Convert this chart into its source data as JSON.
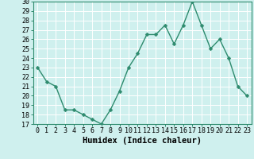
{
  "x": [
    0,
    1,
    2,
    3,
    4,
    5,
    6,
    7,
    8,
    9,
    10,
    11,
    12,
    13,
    14,
    15,
    16,
    17,
    18,
    19,
    20,
    21,
    22,
    23
  ],
  "y": [
    23,
    21.5,
    21,
    18.5,
    18.5,
    18,
    17.5,
    17,
    18.5,
    20.5,
    23,
    24.5,
    26.5,
    26.5,
    27.5,
    25.5,
    27.5,
    30,
    27.5,
    25,
    26,
    24,
    21,
    20
  ],
  "line_color": "#2e8b6e",
  "marker": "D",
  "marker_size": 2.5,
  "bg_color": "#cff0ee",
  "grid_color": "#ffffff",
  "xlabel": "Humidex (Indice chaleur)",
  "ylim": [
    17,
    30
  ],
  "xlim": [
    -0.5,
    23.5
  ],
  "yticks": [
    17,
    18,
    19,
    20,
    21,
    22,
    23,
    24,
    25,
    26,
    27,
    28,
    29,
    30
  ],
  "xticks": [
    0,
    1,
    2,
    3,
    4,
    5,
    6,
    7,
    8,
    9,
    10,
    11,
    12,
    13,
    14,
    15,
    16,
    17,
    18,
    19,
    20,
    21,
    22,
    23
  ],
  "label_fontsize": 6,
  "xlabel_fontsize": 7.5,
  "line_width": 1.0,
  "spine_color": "#2e8b6e"
}
